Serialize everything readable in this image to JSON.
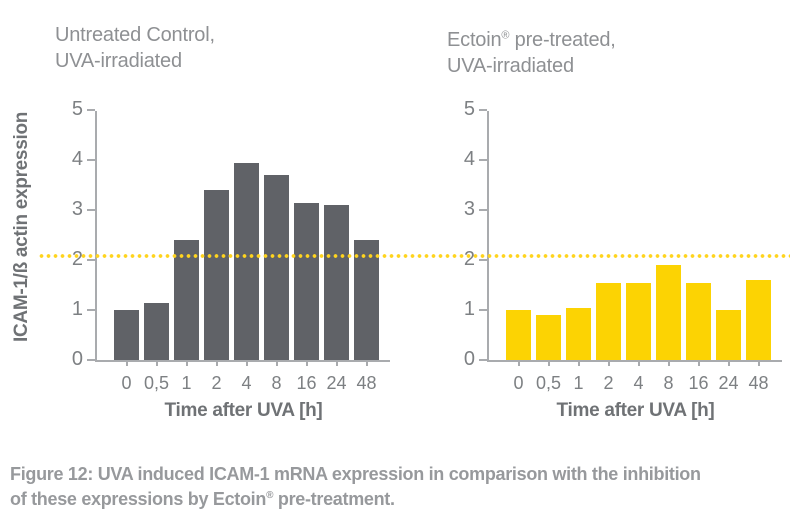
{
  "colors": {
    "bar_gray": "#606267",
    "bar_yellow": "#fcd303",
    "dotted_line": "#ffd41e",
    "axis": "#a9abae",
    "tick_text": "#7d8083",
    "title_text": "#8e9093",
    "strong_text": "#6f7275",
    "caption_text": "#97999c"
  },
  "left_panel": {
    "title_line1": "Untreated Control,",
    "title_line2": "UVA-irradiated"
  },
  "right_panel": {
    "title_pre": "Ectoin",
    "title_sup": "®",
    "title_post": " pre-treated,",
    "title_line2": "UVA-irradiated"
  },
  "axis_labels": {
    "ylabel": "ICAM-1/ß actin expression",
    "xlabel_left": "Time after UVA [h]",
    "xlabel_right": "Time after UVA [h]"
  },
  "chart_data": [
    {
      "type": "bar",
      "title": "Untreated Control, UVA-irradiated",
      "categories": [
        "0",
        "0,5",
        "1",
        "2",
        "4",
        "8",
        "16",
        "24",
        "48"
      ],
      "values": [
        1.0,
        1.15,
        2.4,
        3.4,
        3.95,
        3.7,
        3.15,
        3.1,
        2.4
      ],
      "xlabel": "Time after UVA [h]",
      "ylabel": "ICAM-1/ß actin expression",
      "ylim": [
        0,
        5
      ],
      "yticks": [
        0,
        1,
        2,
        3,
        4,
        5
      ],
      "bar_color_key": "bar_gray",
      "reference_line_y": 2.1,
      "grid": false,
      "legend": false
    },
    {
      "type": "bar",
      "title": "Ectoin® pre-treated, UVA-irradiated",
      "categories": [
        "0",
        "0,5",
        "1",
        "2",
        "4",
        "8",
        "16",
        "24",
        "48"
      ],
      "values": [
        1.0,
        0.9,
        1.05,
        1.55,
        1.55,
        1.9,
        1.55,
        1.0,
        1.6
      ],
      "xlabel": "Time after UVA [h]",
      "ylabel": "ICAM-1/ß actin expression",
      "ylim": [
        0,
        5
      ],
      "yticks": [
        0,
        1,
        2,
        3,
        4,
        5
      ],
      "bar_color_key": "bar_yellow",
      "reference_line_y": 2.1,
      "grid": false,
      "legend": false
    }
  ],
  "caption": {
    "line1": "Figure 12: UVA induced ICAM-1 mRNA expression in comparison with the inhibition",
    "line2_pre": "of these expressions by Ectoin",
    "line2_sup": "®",
    "line2_post": " pre-treatment."
  }
}
